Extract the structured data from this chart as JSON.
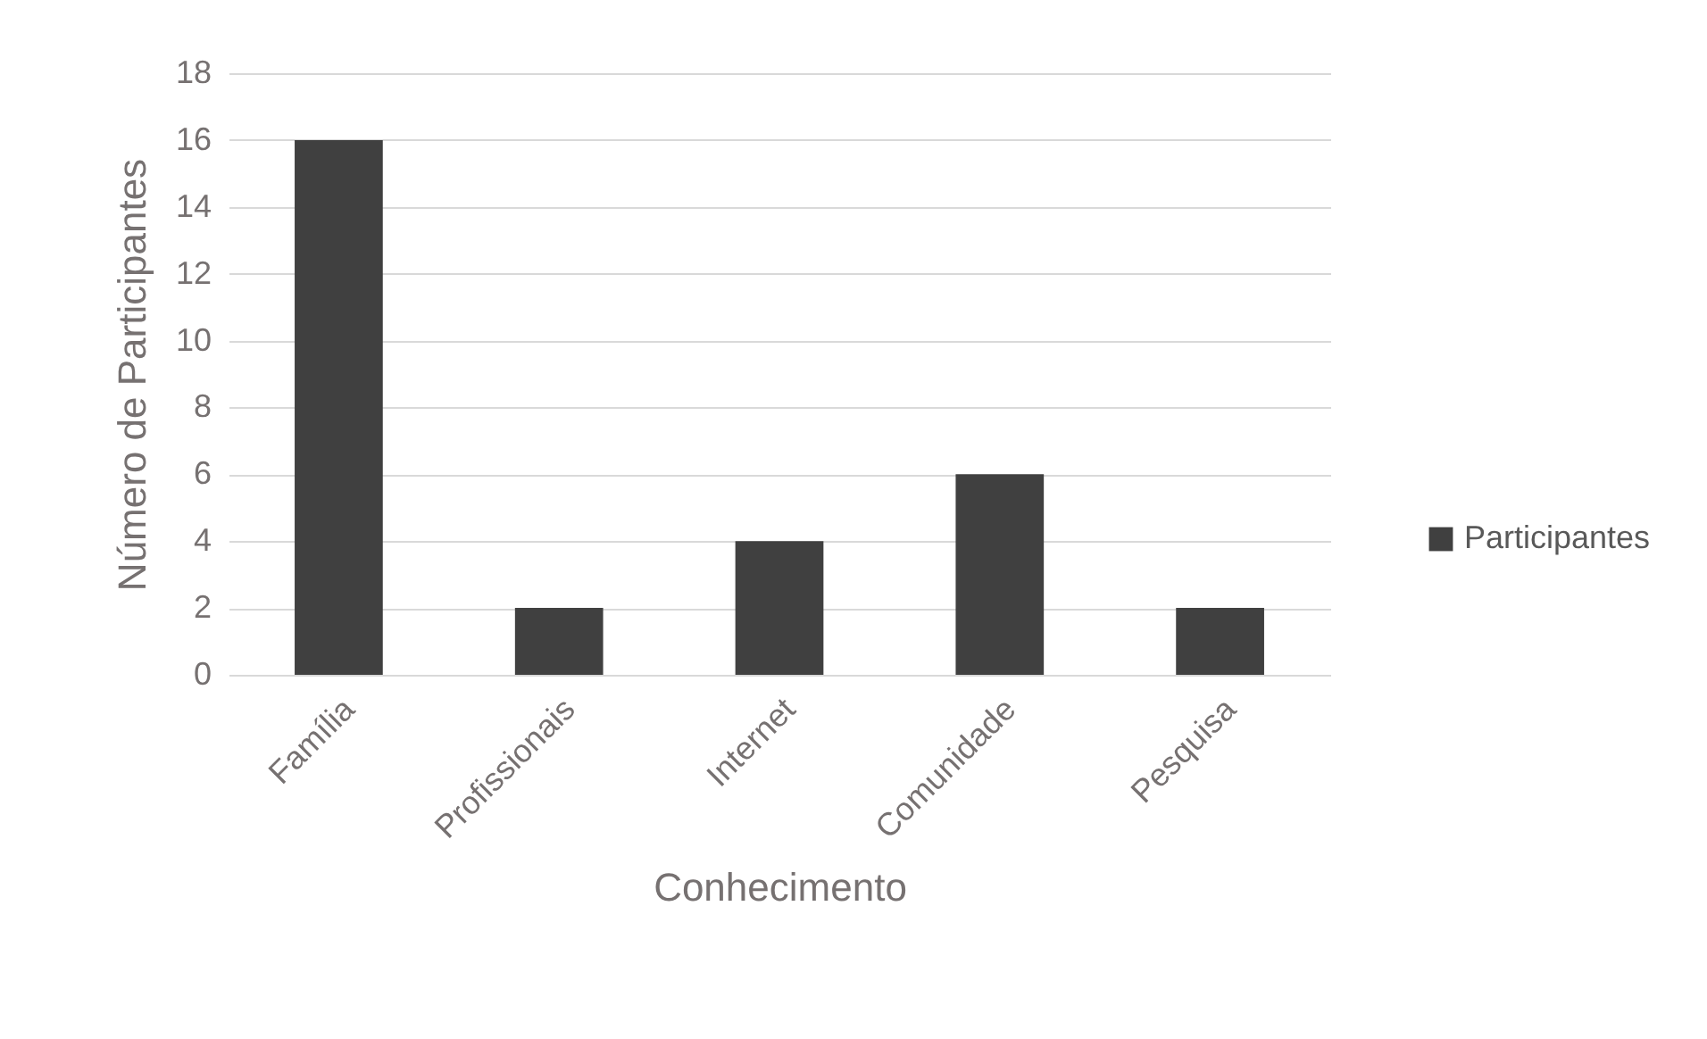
{
  "chart_data": {
    "type": "bar",
    "xlabel": "Conhecimento",
    "ylabel": "Número de Participantes",
    "categories": [
      "Família",
      "Profissionais",
      "Internet",
      "Comunidade",
      "Pesquisa"
    ],
    "series": [
      {
        "name": "Participantes",
        "color": "#404040",
        "values": [
          16,
          2,
          4,
          6,
          2
        ]
      }
    ],
    "ylim": [
      0,
      18
    ],
    "yticks": [
      0,
      2,
      4,
      6,
      8,
      10,
      12,
      14,
      16,
      18
    ],
    "grid": "y",
    "legend": "right"
  }
}
